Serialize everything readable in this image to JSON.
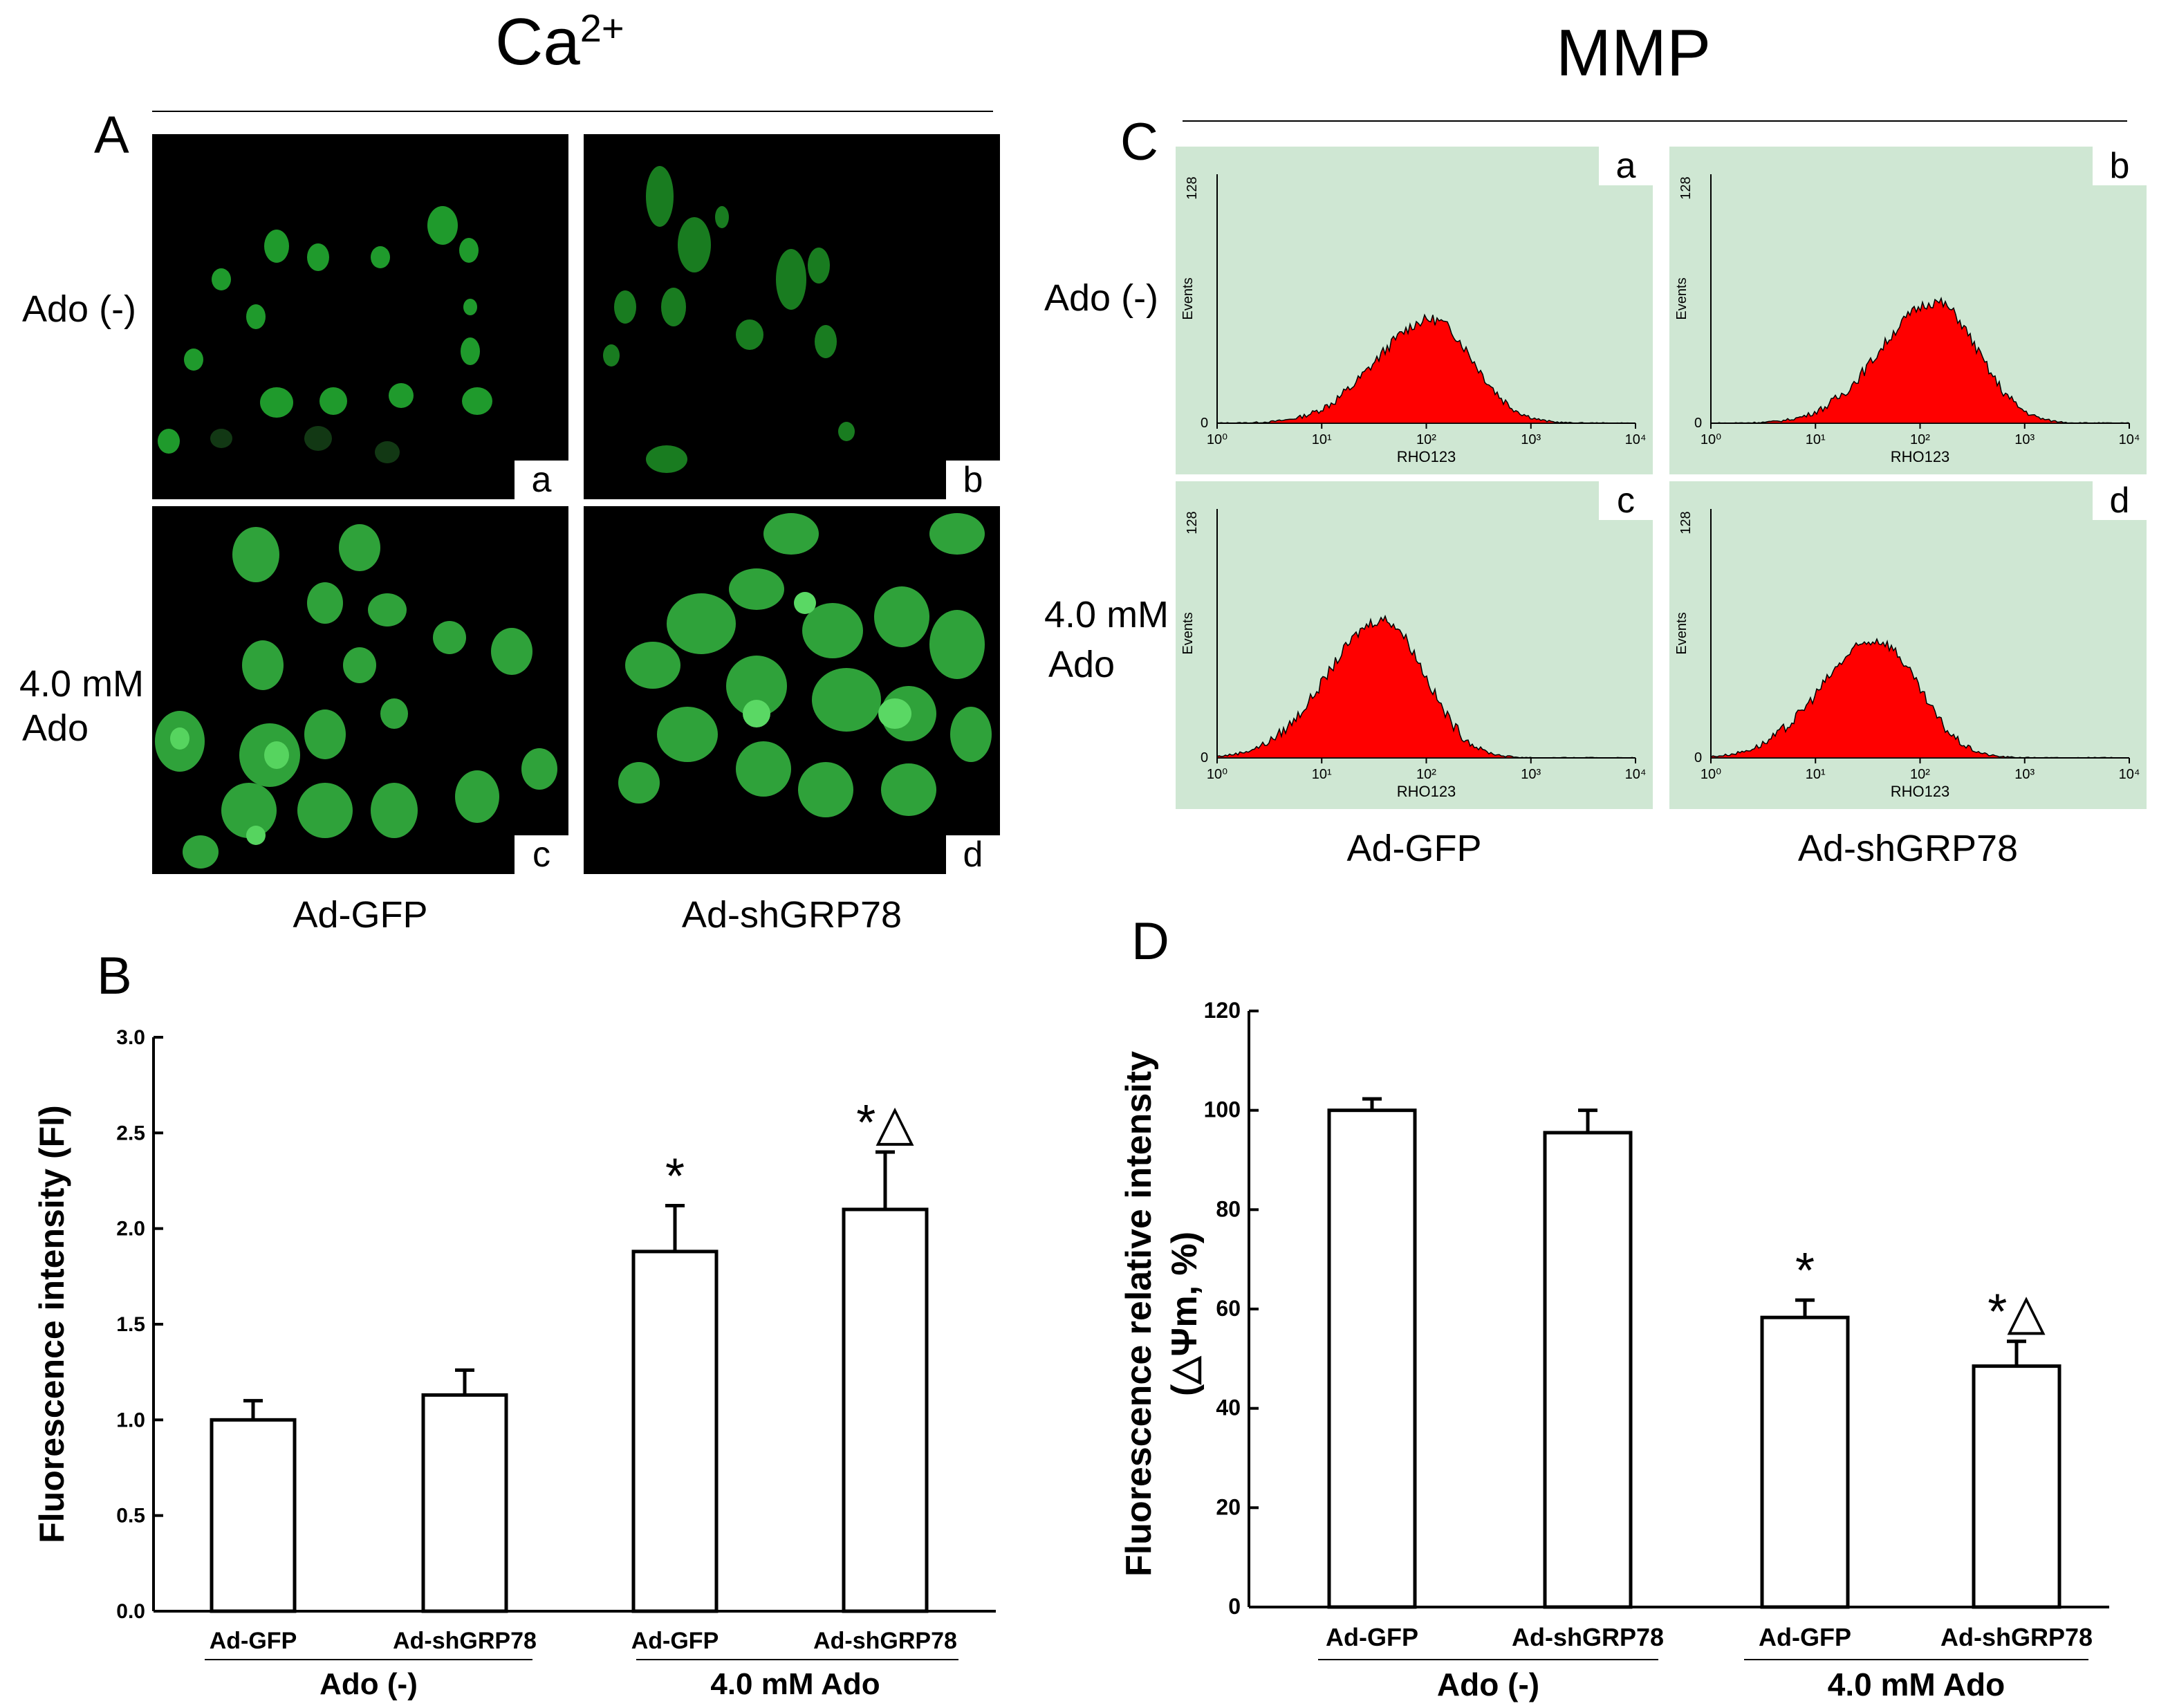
{
  "titles": {
    "calcium": "Ca",
    "calcium_sup": "2+",
    "mmp": "MMP"
  },
  "panels": {
    "A": "A",
    "B": "B",
    "C": "C",
    "D": "D"
  },
  "panel_A": {
    "row_labels": {
      "ado_minus": "Ado (-)",
      "ado_plus_line1": "4.0 mM",
      "ado_plus_line2": "Ado"
    },
    "col_labels": {
      "col1": "Ad-GFP",
      "col2": "Ad-shGRP78"
    },
    "tags": [
      "a",
      "b",
      "c",
      "d"
    ]
  },
  "panel_C": {
    "row_labels": {
      "ado_minus": "Ado (-)",
      "ado_plus_line1": "4.0 mM",
      "ado_plus_line2": "Ado"
    },
    "col_labels": {
      "col1": "Ad-GFP",
      "col2": "Ad-shGRP78"
    },
    "tags": [
      "a",
      "b",
      "c",
      "d"
    ],
    "histogram": {
      "y_label": "Events",
      "y_top": "128",
      "y_zero": "0",
      "x_label": "RHO123",
      "x_ticks": [
        "10⁰",
        "10¹",
        "10²",
        "10³",
        "10⁴"
      ],
      "fill_color": "#ff0000",
      "background": "#cfe7d3"
    }
  },
  "chart_data": [
    {
      "type": "bar",
      "panel": "B",
      "ylabel": "Fluorescence intensity (FI)",
      "ylim": [
        0,
        3.0
      ],
      "yticks": [
        "0.0",
        "0.5",
        "1.0",
        "1.5",
        "2.0",
        "2.5",
        "3.0"
      ],
      "categories": [
        "Ad-GFP",
        "Ad-shGRP78",
        "Ad-GFP",
        "Ad-shGRP78"
      ],
      "groups": [
        "Ado (-)",
        "4.0 mM Ado"
      ],
      "values": [
        1.0,
        1.13,
        1.88,
        2.1
      ],
      "errors": [
        0.1,
        0.13,
        0.24,
        0.3
      ],
      "annotations": [
        "",
        "",
        "*",
        "*△"
      ]
    },
    {
      "type": "bar",
      "panel": "D",
      "ylabel_line1": "Fluorescence relative intensity",
      "ylabel_line2": "(△Ψm, %)",
      "ylim": [
        0,
        120
      ],
      "yticks": [
        "0",
        "20",
        "40",
        "60",
        "80",
        "100",
        "120"
      ],
      "categories": [
        "Ad-GFP",
        "Ad-shGRP78",
        "Ad-GFP",
        "Ad-shGRP78"
      ],
      "groups": [
        "Ado (-)",
        "4.0 mM Ado"
      ],
      "values": [
        100,
        95.5,
        58.3,
        48.5
      ],
      "errors": [
        2.3,
        4.5,
        3.5,
        5.0
      ],
      "annotations": [
        "",
        "",
        "*",
        "*△"
      ]
    }
  ]
}
